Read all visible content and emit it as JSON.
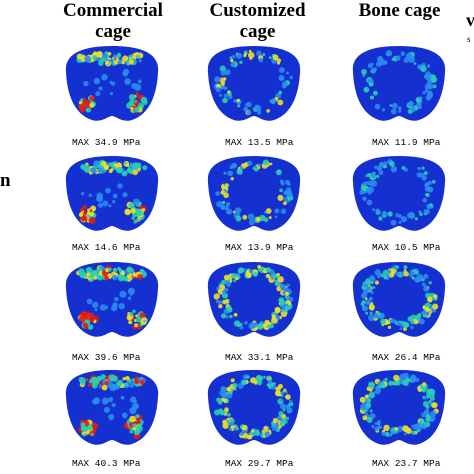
{
  "columns": [
    {
      "line1": "Commercial",
      "line2": "cage"
    },
    {
      "line1": "Customized",
      "line2": "cage"
    },
    {
      "line1": "Bone cage",
      "line2": ""
    }
  ],
  "side_fragments": {
    "top_right": "v",
    "top_right_small": "s",
    "left": "n"
  },
  "panels": [
    [
      "MAX 34.9 MPa",
      "MAX 13.5 MPa",
      "MAX 11.9 MPa"
    ],
    [
      "MAX 14.6 MPa",
      "MAX 13.9 MPa",
      "MAX 10.5 MPa"
    ],
    [
      "MAX 39.6 MPa",
      "MAX 33.1 MPa",
      "MAX 26.4 MPa"
    ],
    [
      "MAX 40.3 MPa",
      "MAX 29.7 MPa",
      "MAX 23.7 MPa"
    ]
  ],
  "colors": {
    "base": "#1530d0",
    "low": "#2a8cf0",
    "mid": "#27d0b0",
    "high": "#f0e020",
    "peak": "#e81a10"
  }
}
